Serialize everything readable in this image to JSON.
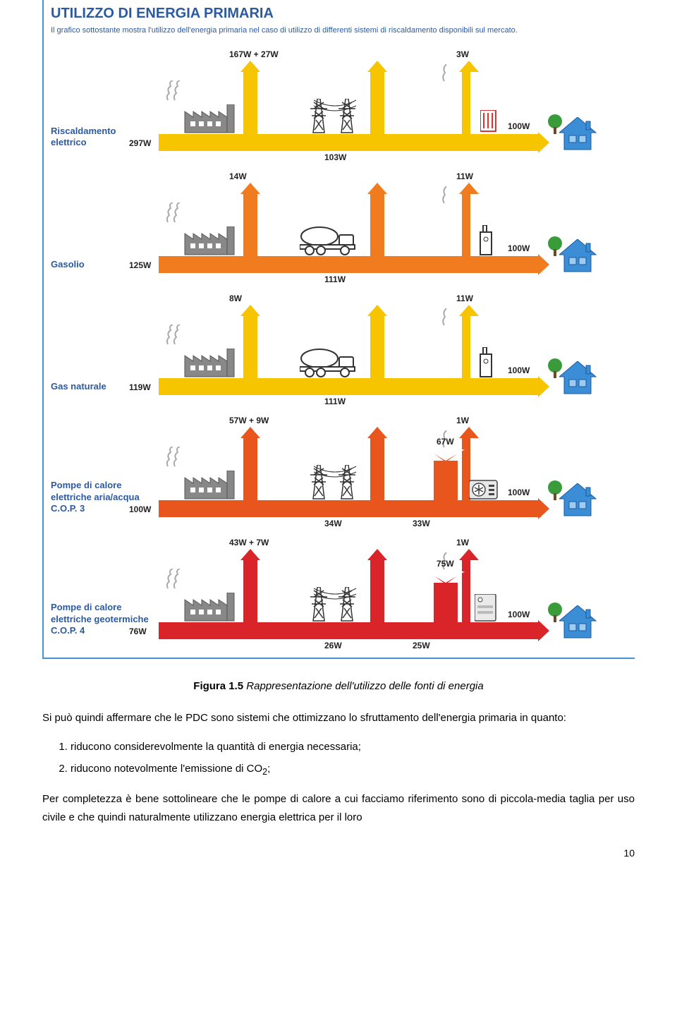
{
  "infographic": {
    "title": "UTILIZZO DI ENERGIA PRIMARIA",
    "subtitle": "Il grafico sottostante mostra l'utilizzo dell'energia primaria nel caso di utilizzo di differenti sistemi di riscaldamento disponibili sul mercato.",
    "colors": {
      "yellow": "#f7c400",
      "orange": "#f07c1f",
      "darkorange": "#e8561d",
      "red": "#d9252a",
      "house_blue": "#3b8ed6",
      "label_blue": "#2c5aa0",
      "gray": "#808080"
    },
    "output_value": "100W",
    "rows": [
      {
        "label": "Riscaldamento elettrico",
        "color": "yellow",
        "input": "297W",
        "plant_loss": "167W + 27W",
        "mid_value": "103W",
        "mid_station": "pylons",
        "end_loss": "3W",
        "end_icon": "radiator"
      },
      {
        "label": "Gasolio",
        "color": "orange",
        "input": "125W",
        "plant_loss": "14W",
        "mid_value": "111W",
        "mid_station": "tanker",
        "end_loss": "11W",
        "end_icon": "boiler"
      },
      {
        "label": "Gas naturale",
        "color": "yellow",
        "input": "119W",
        "plant_loss": "8W",
        "mid_value": "111W",
        "mid_station": "tanker",
        "end_loss": "11W",
        "end_icon": "boiler"
      },
      {
        "label": "Pompe di calore elettriche aria/acqua\nC.O.P. 3",
        "color": "darkorange",
        "input": "100W",
        "plant_loss": "57W + 9W",
        "mid_value": "34W",
        "mid_station": "pylons",
        "end_loss": "1W",
        "end_icon": "heatpump",
        "gain": "67W",
        "after_gain": "33W"
      },
      {
        "label": "Pompe di calore elettriche geotermiche\nC.O.P. 4",
        "color": "red",
        "input": "76W",
        "plant_loss": "43W + 7W",
        "mid_value": "26W",
        "mid_station": "pylons",
        "end_loss": "1W",
        "end_icon": "heatpump",
        "gain": "75W",
        "after_gain": "25W"
      }
    ]
  },
  "caption": {
    "prefix": "Figura 1.5",
    "text": " Rappresentazione dell'utilizzo delle fonti di energia"
  },
  "body": {
    "p1": "Si può quindi affermare che le PDC sono sistemi che ottimizzano lo sfruttamento dell'energia primaria in quanto:",
    "li1": "riducono considerevolmente la quantità di energia necessaria;",
    "li2_a": "riducono notevolmente l'emissione di CO",
    "li2_b": "2",
    "li2_c": ";",
    "p2": "Per completezza è bene sottolineare che le pompe di calore a cui facciamo riferimento sono di piccola-media taglia per uso civile e che quindi naturalmente utilizzano energia elettrica per il loro"
  },
  "page_number": "10"
}
